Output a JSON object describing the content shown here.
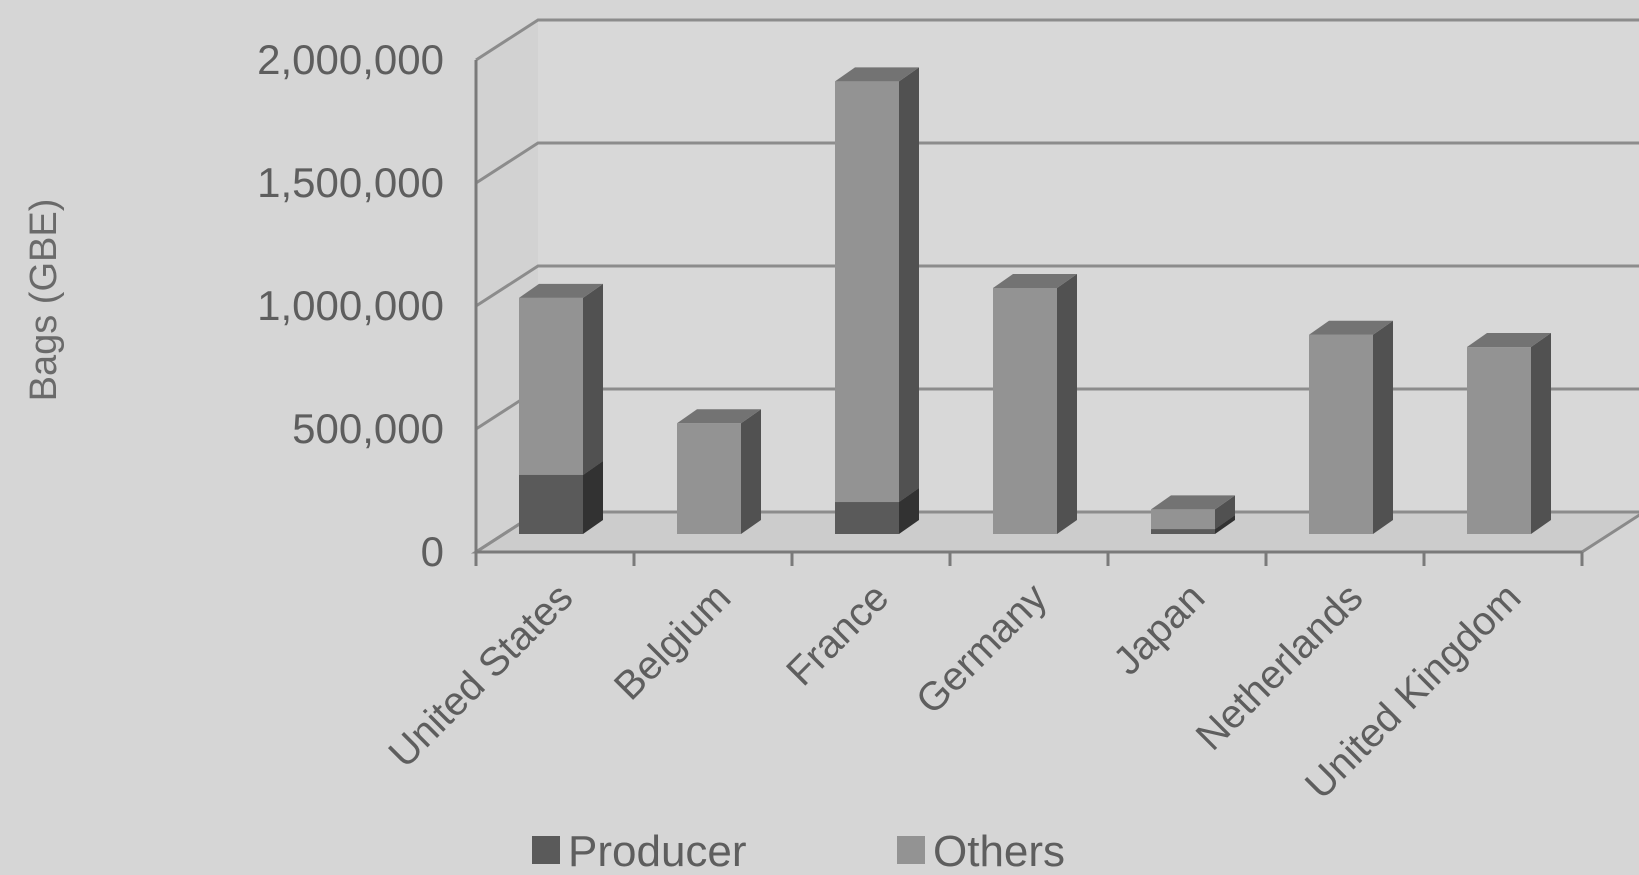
{
  "chart_data": {
    "type": "bar",
    "stacked": true,
    "three_d": true,
    "title": "",
    "xlabel": "",
    "ylabel": "Bags (GBE)",
    "ylim": [
      0,
      2000000
    ],
    "yticks": [
      0,
      500000,
      1000000,
      1500000,
      2000000
    ],
    "ytick_labels": [
      "0",
      "500,000",
      "1,000,000",
      "1,500,000",
      "2,000,000"
    ],
    "grid": true,
    "legend_position": "bottom",
    "categories": [
      "United States",
      "Belgium",
      "France",
      "Germany",
      "Japan",
      "Netherlands",
      "United Kingdom"
    ],
    "series": [
      {
        "name": "Producer",
        "color": "#5a5a5a",
        "values": [
          240000,
          0,
          130000,
          0,
          20000,
          0,
          0
        ]
      },
      {
        "name": "Others",
        "color": "#939393",
        "values": [
          720000,
          450000,
          1710000,
          1000000,
          80000,
          810000,
          760000
        ]
      }
    ]
  }
}
